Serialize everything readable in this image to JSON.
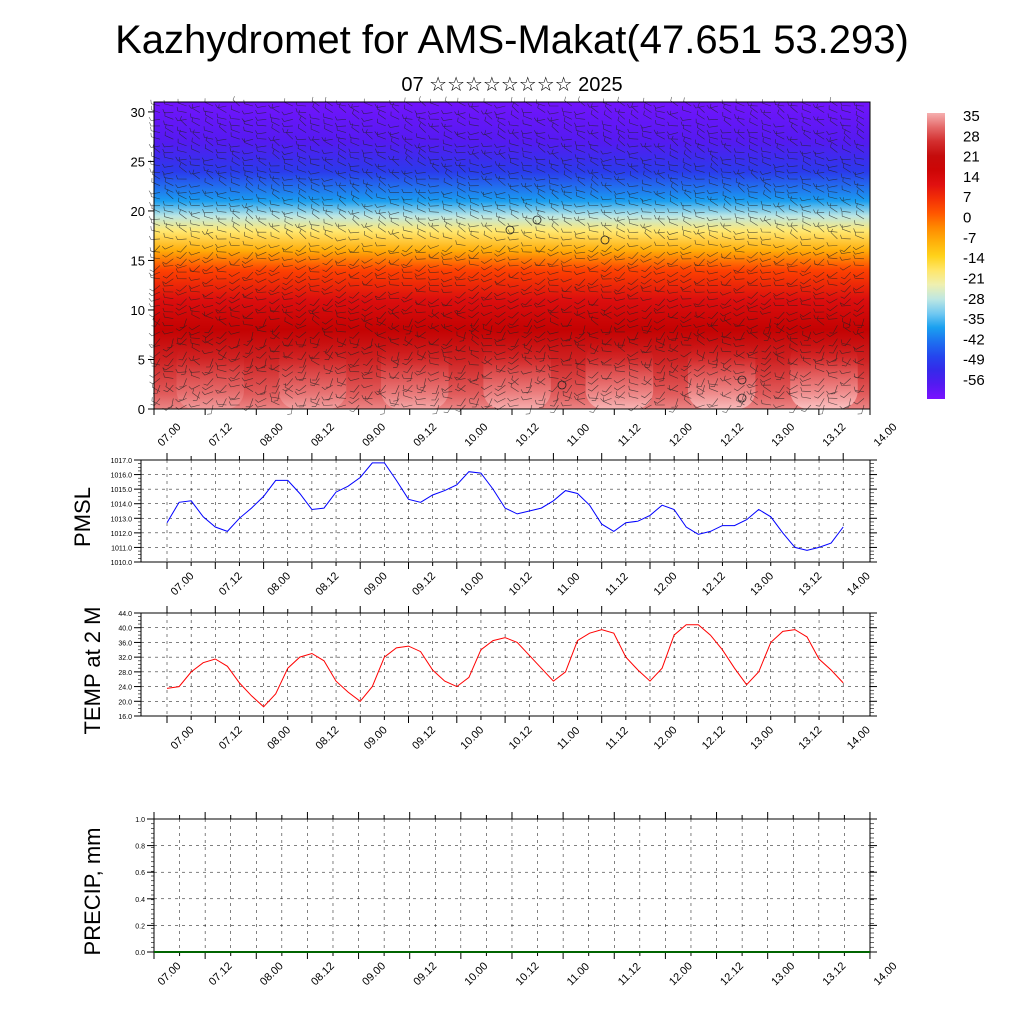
{
  "title": "Kazhydromet for AMS-Makat(47.651 53.293)",
  "subtitle": "07 ☆☆☆☆☆☆☆☆ 2025",
  "chart_data": [
    {
      "type": "heatmap",
      "name": "height-time temperature section with wind barbs",
      "x_ticks": [
        "07.00",
        "07.12",
        "08.00",
        "08.12",
        "09.00",
        "09.12",
        "10.00",
        "10.12",
        "11.00",
        "11.12",
        "12.00",
        "12.12",
        "13.00",
        "13.12",
        "14.00"
      ],
      "y_ticks": [
        "0",
        "5",
        "10",
        "15",
        "20",
        "25",
        "30"
      ],
      "ylim": [
        0,
        31
      ],
      "colorbar_ticks": [
        "35",
        "28",
        "21",
        "14",
        "7",
        "0",
        "-7",
        "-14",
        "-21",
        "-28",
        "-35",
        "-42",
        "-49",
        "-56"
      ],
      "colorbar_range": [
        -63,
        38
      ],
      "colors": [
        "#7a12ff",
        "#3a1fe8",
        "#1f50f0",
        "#1aa0f0",
        "#aee4f2",
        "#fff3a0",
        "#ffd21a",
        "#ff9a00",
        "#ff4500",
        "#e01010",
        "#c00000",
        "#d83a3a",
        "#f6b0b0"
      ],
      "profile": {
        "levels_km": [
          0,
          1.5,
          5,
          8,
          11,
          14,
          16,
          18,
          19.5,
          21,
          24,
          27,
          31
        ],
        "values_c": [
          35,
          32,
          26,
          20,
          14,
          5,
          -7,
          -18,
          -28,
          -38,
          -50,
          -58,
          -62
        ]
      }
    },
    {
      "type": "line",
      "ylabel": "PMSL",
      "ylim": [
        1010.0,
        1017.0
      ],
      "y_ticks": [
        "1010.0",
        "1011.0",
        "1012.0",
        "1013.0",
        "1014.0",
        "1015.0",
        "1016.0",
        "1017.0"
      ],
      "x_ticks": [
        "07.00",
        "07.12",
        "08.00",
        "08.12",
        "09.00",
        "09.12",
        "10.00",
        "10.12",
        "11.00",
        "11.12",
        "12.00",
        "12.12",
        "13.00",
        "13.12",
        "14.00"
      ],
      "color": "#0000ff",
      "x": [
        0,
        3,
        6,
        9,
        12,
        15,
        18,
        21,
        24,
        27,
        30,
        33,
        36,
        39,
        42,
        45,
        48,
        51,
        54,
        57,
        60,
        63,
        66,
        69,
        72,
        75,
        78,
        81,
        84,
        87,
        90,
        93,
        96,
        99,
        102,
        105,
        108,
        111,
        114,
        117,
        120,
        123,
        126,
        129,
        132,
        135,
        138,
        141,
        144,
        147,
        150,
        153,
        156,
        159,
        162,
        165,
        168
      ],
      "values": [
        1012.7,
        1014.1,
        1014.2,
        1013.1,
        1012.4,
        1012.1,
        1013.0,
        1013.7,
        1014.5,
        1015.6,
        1015.6,
        1014.7,
        1013.6,
        1013.7,
        1014.8,
        1015.2,
        1015.8,
        1016.8,
        1016.8,
        1015.6,
        1014.3,
        1014.1,
        1014.6,
        1014.9,
        1015.3,
        1016.2,
        1016.1,
        1015.0,
        1013.7,
        1013.3,
        1013.5,
        1013.7,
        1014.2,
        1014.9,
        1014.7,
        1013.9,
        1012.6,
        1012.1,
        1012.7,
        1012.8,
        1013.2,
        1013.9,
        1013.6,
        1012.4,
        1011.9,
        1012.1,
        1012.5,
        1012.5,
        1012.9,
        1013.6,
        1013.1,
        1012.0,
        1011.0,
        1010.8,
        1011.0,
        1011.3,
        1012.4
      ]
    },
    {
      "type": "line",
      "ylabel": "TEMP at 2 M",
      "ylim": [
        16.0,
        44.0
      ],
      "y_ticks": [
        "16.0",
        "20.0",
        "24.0",
        "28.0",
        "32.0",
        "36.0",
        "40.0",
        "44.0"
      ],
      "x_ticks": [
        "07.00",
        "07.12",
        "08.00",
        "08.12",
        "09.00",
        "09.12",
        "10.00",
        "10.12",
        "11.00",
        "11.12",
        "12.00",
        "12.12",
        "13.00",
        "13.12",
        "14.00"
      ],
      "color": "#ff0000",
      "x": [
        0,
        3,
        6,
        9,
        12,
        15,
        18,
        21,
        24,
        27,
        30,
        33,
        36,
        39,
        42,
        45,
        48,
        51,
        54,
        57,
        60,
        63,
        66,
        69,
        72,
        75,
        78,
        81,
        84,
        87,
        90,
        93,
        96,
        99,
        102,
        105,
        108,
        111,
        114,
        117,
        120,
        123,
        126,
        129,
        132,
        135,
        138,
        141,
        144,
        147,
        150,
        153,
        156,
        159,
        162,
        165,
        168
      ],
      "values": [
        23.5,
        24.0,
        28.0,
        30.5,
        31.5,
        29.5,
        25.0,
        21.5,
        18.5,
        22.0,
        29.0,
        32.0,
        33.0,
        31.0,
        25.5,
        22.5,
        20.0,
        24.0,
        32.0,
        34.5,
        35.0,
        33.5,
        28.5,
        25.5,
        24.0,
        26.5,
        34.0,
        36.5,
        37.3,
        36.0,
        32.5,
        29.0,
        25.5,
        28.0,
        36.5,
        38.5,
        39.5,
        38.5,
        32.0,
        28.5,
        25.5,
        29.0,
        38.0,
        40.8,
        40.8,
        38.0,
        34.0,
        29.0,
        24.5,
        28.0,
        36.0,
        39.0,
        39.5,
        37.5,
        31.5,
        28.5,
        25.0
      ]
    },
    {
      "type": "bar",
      "ylabel": "PRECIP, mm",
      "ylim": [
        0.0,
        1.0
      ],
      "y_ticks": [
        "0.0",
        "0.2",
        "0.4",
        "0.6",
        "0.8",
        "1.0"
      ],
      "x_ticks": [
        "07.00",
        "07.12",
        "08.00",
        "08.12",
        "09.00",
        "09.12",
        "10.00",
        "10.12",
        "11.00",
        "11.12",
        "12.00",
        "12.12",
        "13.00",
        "13.12",
        "14.00"
      ],
      "color": "#006400",
      "values": [
        0,
        0,
        0,
        0,
        0,
        0,
        0,
        0,
        0,
        0,
        0,
        0,
        0,
        0,
        0
      ]
    }
  ]
}
